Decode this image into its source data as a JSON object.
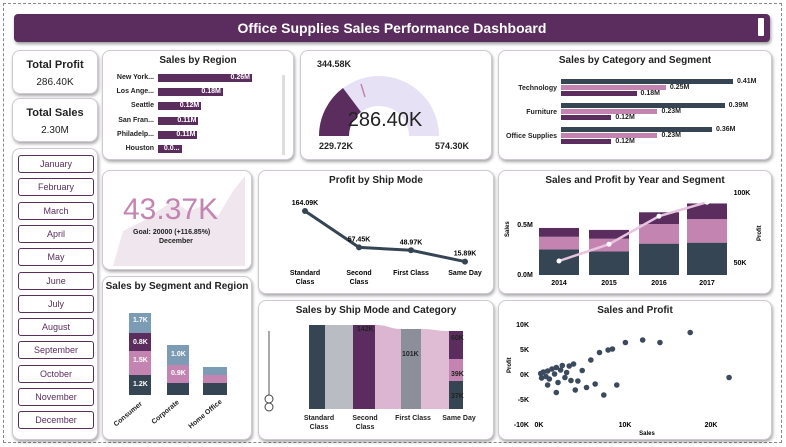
{
  "header": {
    "title": "Office Supplies Sales Performance Dashboard"
  },
  "kpis": {
    "profit": {
      "label": "Total Profit",
      "value": "286.40K"
    },
    "sales": {
      "label": "Total Sales",
      "value": "2.30M"
    }
  },
  "months": [
    "January",
    "February",
    "March",
    "April",
    "May",
    "June",
    "July",
    "August",
    "September",
    "October",
    "November",
    "December"
  ],
  "region": {
    "title": "Sales by Region",
    "items": [
      {
        "name": "New York...",
        "value": "0.26M",
        "frac": 1.0
      },
      {
        "name": "Los Ange...",
        "value": "0.18M",
        "frac": 0.69
      },
      {
        "name": "Seattle",
        "value": "0.12M",
        "frac": 0.46
      },
      {
        "name": "San Fran...",
        "value": "0.11M",
        "frac": 0.43
      },
      {
        "name": "Philadelp...",
        "value": "0.11M",
        "frac": 0.42
      },
      {
        "name": "Houston",
        "value": "0.0...",
        "frac": 0.25
      }
    ]
  },
  "gauge": {
    "target": "344.58K",
    "value": "286.40K",
    "min": "229.72K",
    "max": "574.30K"
  },
  "category": {
    "title": "Sales by Category and Segment",
    "rows": [
      {
        "name": "Technology",
        "bars": [
          {
            "v": 0.41,
            "label": "0.41M"
          },
          {
            "v": 0.25,
            "label": "0.25M"
          },
          {
            "v": 0.18,
            "label": "0.18M"
          }
        ]
      },
      {
        "name": "Furniture",
        "bars": [
          {
            "v": 0.39,
            "label": "0.39M"
          },
          {
            "v": 0.23,
            "label": "0.23M"
          },
          {
            "v": 0.12,
            "label": "0.12M"
          }
        ]
      },
      {
        "name": "Office Supplies",
        "bars": [
          {
            "v": 0.36,
            "label": "0.36M"
          },
          {
            "v": 0.23,
            "label": "0.23M"
          },
          {
            "v": 0.12,
            "label": "0.12M"
          }
        ]
      }
    ]
  },
  "kpi_card": {
    "value": "43.37K",
    "goal": "Goal: 20000 (+116.85%)",
    "period": "December"
  },
  "shipmode": {
    "title": "Profit by Ship Mode",
    "points": [
      {
        "name": "Standard Class",
        "value": 164.09,
        "label": "164.09K"
      },
      {
        "name": "Second Class",
        "value": 57.45,
        "label": "57.45K"
      },
      {
        "name": "First Class",
        "value": 48.97,
        "label": "48.97K"
      },
      {
        "name": "Same Day",
        "value": 15.89,
        "label": "15.89K"
      }
    ],
    "categories": [
      "Standard",
      "Second",
      "First Class",
      "Same Day"
    ],
    "categories2": [
      "Class",
      "Class",
      "",
      ""
    ]
  },
  "yearseg": {
    "title": "Sales and Profit by Year and Segment",
    "years": [
      "2014",
      "2015",
      "2016",
      "2017"
    ],
    "ylabel": "Sales",
    "y2label": "Profit",
    "yticks": [
      "0.5M",
      "0.0M"
    ],
    "y2ticks": [
      "100K",
      "50K"
    ],
    "stacks": [
      [
        0.26,
        0.13,
        0.09
      ],
      [
        0.24,
        0.13,
        0.09
      ],
      [
        0.32,
        0.2,
        0.12
      ],
      [
        0.33,
        0.24,
        0.16
      ]
    ],
    "profit": [
      50,
      62,
      82,
      92
    ]
  },
  "segregion": {
    "title": "Sales by Segment and Region",
    "segments": [
      "Consumer",
      "Corporate",
      "Home Office"
    ],
    "labels": [
      [
        "1.7K",
        "0.8K",
        "1.5K",
        "1.2K"
      ],
      [
        "1.0K",
        "0.9K"
      ],
      []
    ]
  },
  "shipcat": {
    "title": "Sales by Ship Mode and Category",
    "labels": [
      "142K",
      "101K",
      "60K",
      "39K",
      "37K"
    ],
    "categories": [
      "Standard",
      "Second",
      "First Class",
      "Same Day"
    ],
    "categories2": [
      "Class",
      "Class",
      "",
      ""
    ]
  },
  "scatter": {
    "title": "Sales and Profit",
    "xlabel": "Sales",
    "ylabel": "Profit",
    "xticks": [
      "0K",
      "10K",
      "20K"
    ],
    "yticks": [
      "10K",
      "5K",
      "0K",
      "-5K",
      "-10K"
    ],
    "points": [
      [
        0.2,
        0.3
      ],
      [
        0.5,
        0.6
      ],
      [
        1,
        0.8
      ],
      [
        1.5,
        1.2
      ],
      [
        2,
        1.5
      ],
      [
        2.5,
        1
      ],
      [
        3,
        -0.5
      ],
      [
        3.5,
        1.8
      ],
      [
        4,
        2.2
      ],
      [
        4.5,
        -1.2
      ],
      [
        5,
        0.9
      ],
      [
        6,
        3
      ],
      [
        7,
        4.5
      ],
      [
        8,
        5
      ],
      [
        8.5,
        5.2
      ],
      [
        9,
        -2
      ],
      [
        10,
        6.5
      ],
      [
        12,
        7
      ],
      [
        14,
        6.5
      ],
      [
        17.5,
        8.5
      ],
      [
        22,
        -0.5
      ],
      [
        0.8,
        -0.3
      ],
      [
        1.2,
        -0.8
      ],
      [
        1.8,
        0.2
      ],
      [
        2.2,
        -1.5
      ],
      [
        3.2,
        0.5
      ],
      [
        4.2,
        -3
      ],
      [
        5.5,
        -2.5
      ],
      [
        6.5,
        -1.8
      ],
      [
        7.5,
        -4
      ],
      [
        1,
        -2
      ],
      [
        2,
        -3.5
      ],
      [
        0.3,
        -0.6
      ],
      [
        2.7,
        1.9
      ],
      [
        3.7,
        -1.1
      ]
    ],
    "colors": {
      "accent": "#3b4a5c"
    }
  },
  "colors": {
    "purple": "#5b2d5f",
    "pink": "#c484b1",
    "navy": "#354554",
    "lavender": "#e7e1f5"
  }
}
